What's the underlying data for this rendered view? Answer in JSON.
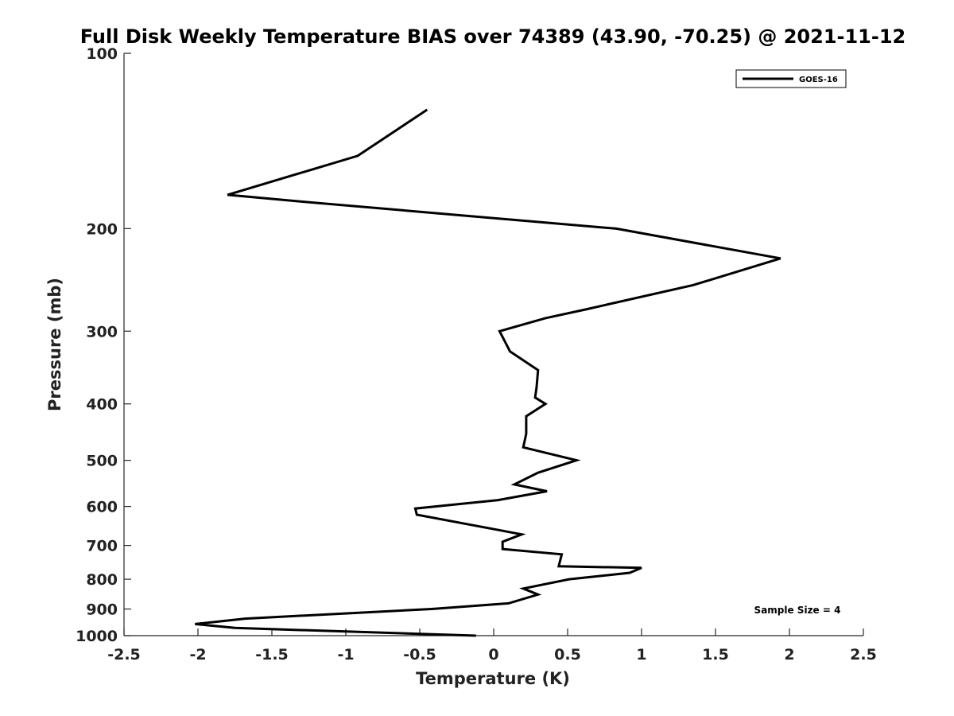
{
  "chart_data": {
    "type": "line",
    "title": "Full Disk Weekly Temperature BIAS over 74389 (43.90, -70.25) @ 2021-11-12",
    "xlabel": "Temperature (K)",
    "ylabel": "Pressure (mb)",
    "xlim": [
      -2.5,
      2.5
    ],
    "ylim": [
      1000,
      100
    ],
    "y_scale": "log",
    "y_reversed": true,
    "x_ticks": [
      "-2.5",
      "-2",
      "-1.5",
      "-1",
      "-0.5",
      "0",
      "0.5",
      "1",
      "1.5",
      "2",
      "2.5"
    ],
    "y_ticks": [
      "100",
      "200",
      "300",
      "400",
      "500",
      "600",
      "700",
      "800",
      "900",
      "1000"
    ],
    "grid": false,
    "legend": {
      "position": "top-right",
      "entries": [
        "GOES-16"
      ]
    },
    "annotation": "Sample Size = 4",
    "series": [
      {
        "name": "GOES-16",
        "color": "#000000",
        "x": [
          -0.45,
          -0.92,
          -1.8,
          -1.27,
          0.83,
          1.94,
          1.35,
          0.63,
          0.35,
          0.04,
          0.11,
          0.3,
          0.29,
          0.28,
          0.35,
          0.22,
          0.22,
          0.2,
          0.56,
          0.3,
          0.14,
          0.36,
          0.03,
          -0.53,
          -0.52,
          0.19,
          0.06,
          0.06,
          0.46,
          0.44,
          1.0,
          0.92,
          0.51,
          0.2,
          0.3,
          0.1,
          -0.42,
          -1.68,
          -2.02,
          -1.75,
          -0.12
        ],
        "y": [
          125,
          150,
          175,
          180,
          200,
          225,
          250,
          275,
          285,
          300,
          325,
          350,
          375,
          390,
          400,
          420,
          450,
          475,
          500,
          525,
          550,
          565,
          585,
          605,
          620,
          670,
          690,
          710,
          725,
          760,
          765,
          780,
          800,
          830,
          850,
          880,
          900,
          935,
          955,
          970,
          1000
        ]
      }
    ]
  }
}
